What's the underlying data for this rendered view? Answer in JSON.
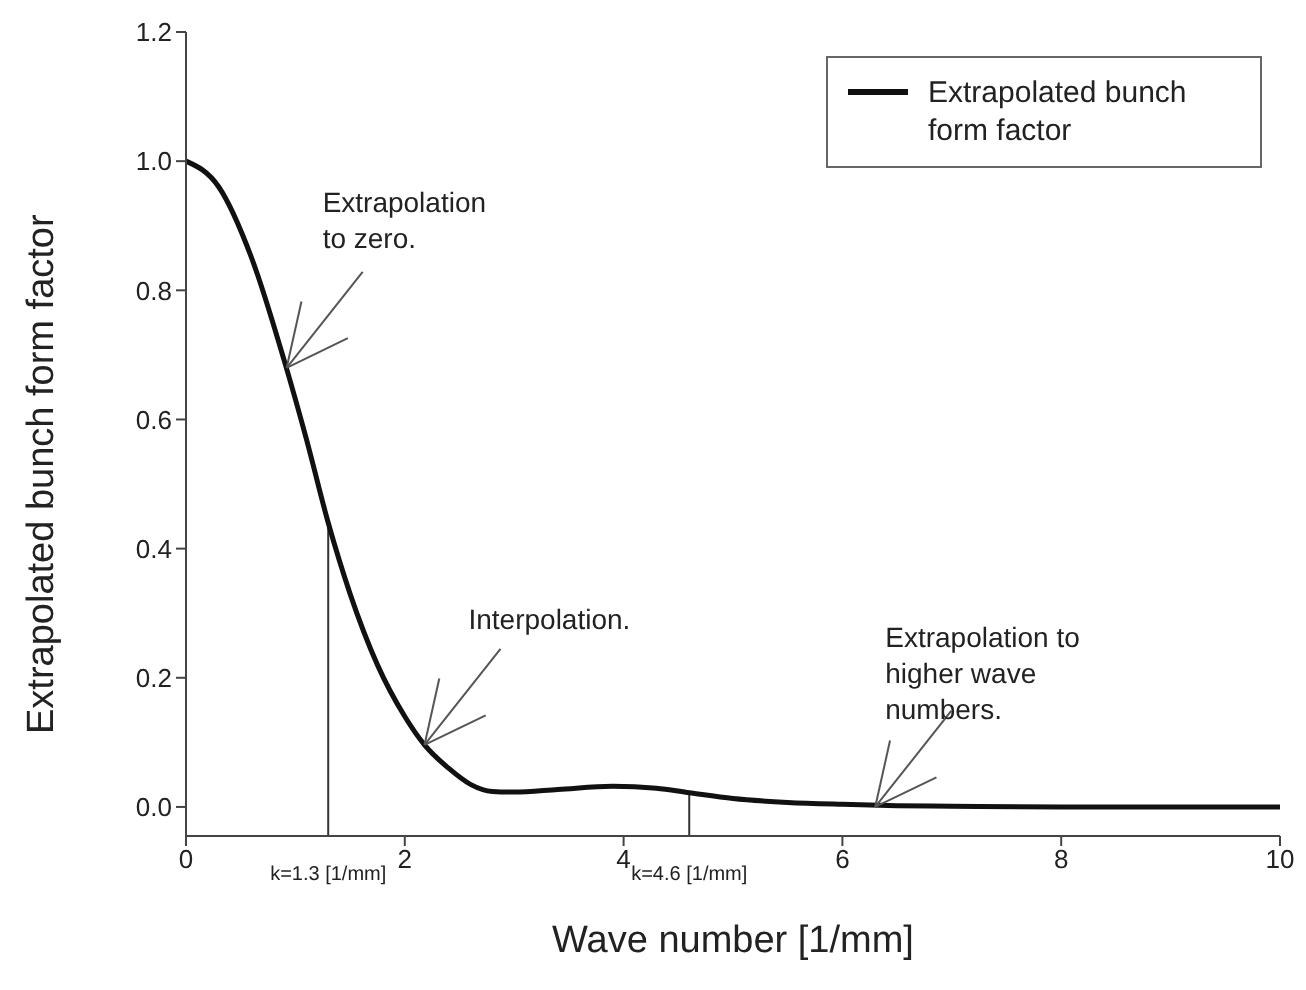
{
  "chart_data": {
    "type": "line",
    "xlabel": "Wave number [1/mm]",
    "ylabel": "Extrapolated bunch form factor",
    "x": [
      0,
      0.3,
      0.6,
      0.9,
      1.1,
      1.3,
      1.5,
      1.75,
      2.0,
      2.18,
      2.4,
      2.6,
      2.8,
      3.0,
      3.4,
      3.9,
      4.3,
      4.6,
      5.0,
      5.5,
      6.0,
      6.5,
      7,
      8,
      9,
      10
    ],
    "series": [
      {
        "name": "Extrapolated bunch form factor",
        "color": "#111111",
        "values": [
          1.0,
          0.96,
          0.85,
          0.69,
          0.57,
          0.44,
          0.33,
          0.22,
          0.14,
          0.096,
          0.06,
          0.035,
          0.024,
          0.023,
          0.027,
          0.032,
          0.029,
          0.022,
          0.013,
          0.007,
          0.004,
          0.002,
          0.001,
          0,
          0,
          0
        ]
      }
    ],
    "xlim": [
      0,
      10
    ],
    "xticks": [
      0,
      2,
      4,
      6,
      8,
      10
    ],
    "ylim": [
      -0.045,
      1.2
    ],
    "yticks": [
      {
        "value": 0,
        "label": "0.0"
      },
      {
        "value": 0.2,
        "label": "0.2"
      },
      {
        "value": 0.4,
        "label": "0.4"
      },
      {
        "value": 0.6,
        "label": "0.6"
      },
      {
        "value": 0.8,
        "label": "0.8"
      },
      {
        "value": 1,
        "label": "1.0"
      },
      {
        "value": 1.2,
        "label": "1.2"
      }
    ],
    "ref_lines": [
      {
        "axis": "x",
        "value": 1.3,
        "label": "k=1.3 [1/mm]"
      },
      {
        "axis": "x",
        "value": 4.6,
        "label": "k=4.6 [1/mm]"
      }
    ],
    "annotations": [
      {
        "text": "Extrapolation to zero.",
        "x": 0.92,
        "y": 0.68
      },
      {
        "text": "Interpolation.",
        "x": 2.18,
        "y": 0.096
      },
      {
        "text": "Extrapolation to higher wave numbers.",
        "x": 6.3,
        "y": 0.0
      }
    ],
    "legend": "top right",
    "grid": false,
    "marker": "none",
    "line_style": "solid"
  }
}
